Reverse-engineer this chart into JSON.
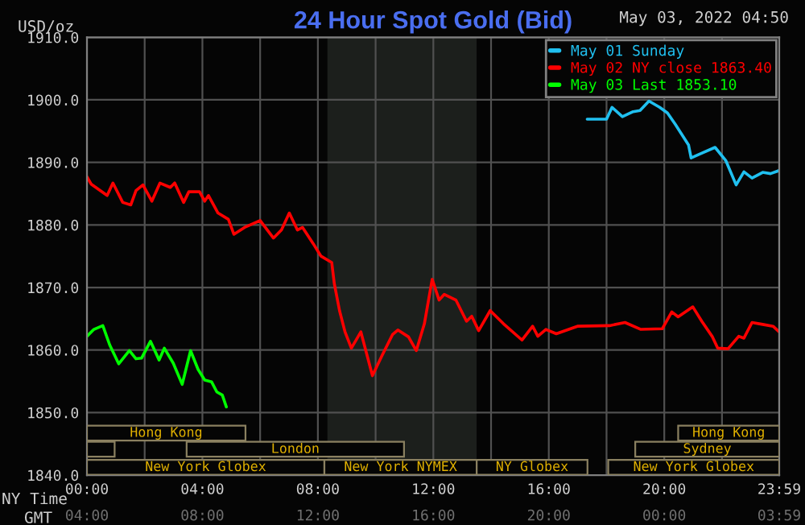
{
  "chart_data": {
    "type": "line",
    "title": "24 Hour Spot Gold (Bid)",
    "ylabel": "USD/oz",
    "series": [
      {
        "name": "May 01 Sunday",
        "color": "#20c0f0",
        "x": [
          17.33,
          18.0,
          18.19,
          18.55,
          18.92,
          19.16,
          19.47,
          19.84,
          20.11,
          20.38,
          20.84,
          20.93,
          21.21,
          21.76,
          22.13,
          22.49,
          22.76,
          23.04,
          23.41,
          23.68,
          23.98
        ],
        "values": [
          1896.9,
          1896.9,
          1898.8,
          1897.3,
          1898.1,
          1898.3,
          1899.8,
          1898.8,
          1897.9,
          1896.1,
          1892.8,
          1890.7,
          1891.3,
          1892.4,
          1890.3,
          1886.4,
          1888.5,
          1887.5,
          1888.4,
          1888.2,
          1888.7
        ]
      },
      {
        "name": "May 02 NY close 1863.40",
        "color": "#ff0000",
        "x": [
          0,
          0.15,
          0.7,
          0.9,
          1.24,
          1.52,
          1.7,
          1.94,
          2.25,
          2.53,
          2.89,
          3.04,
          3.35,
          3.53,
          3.9,
          4.08,
          4.21,
          4.54,
          4.9,
          5.09,
          5.46,
          6.0,
          6.46,
          6.74,
          7.01,
          7.29,
          7.47,
          7.84,
          8.11,
          8.48,
          8.57,
          8.75,
          8.94,
          9.16,
          9.49,
          9.89,
          10.22,
          10.59,
          10.77,
          11.14,
          11.41,
          11.69,
          11.96,
          12.2,
          12.38,
          12.78,
          13.15,
          13.33,
          13.57,
          13.97,
          14.43,
          15.07,
          15.44,
          15.62,
          15.9,
          16.26,
          16.99,
          18.1,
          18.64,
          19.19,
          19.93,
          20.26,
          20.48,
          20.99,
          21.3,
          21.67,
          21.85,
          22.21,
          22.58,
          22.76,
          23.04,
          23.41,
          23.77,
          23.98
        ],
        "values": [
          1887.7,
          1886.5,
          1884.7,
          1886.7,
          1883.6,
          1883.2,
          1885.5,
          1886.4,
          1883.8,
          1886.7,
          1886.0,
          1886.7,
          1883.6,
          1885.3,
          1885.3,
          1883.8,
          1884.7,
          1881.9,
          1880.9,
          1878.5,
          1879.6,
          1880.7,
          1877.9,
          1879.2,
          1881.9,
          1879.2,
          1879.6,
          1877.0,
          1875.0,
          1874.0,
          1870.6,
          1866.3,
          1862.9,
          1860.3,
          1862.9,
          1855.9,
          1859.1,
          1862.5,
          1863.2,
          1862.1,
          1859.9,
          1864.2,
          1871.3,
          1868.0,
          1868.9,
          1868.0,
          1864.6,
          1865.4,
          1863.1,
          1866.3,
          1864.2,
          1861.6,
          1863.8,
          1862.2,
          1863.3,
          1862.6,
          1863.8,
          1863.9,
          1864.4,
          1863.3,
          1863.4,
          1866.1,
          1865.3,
          1866.9,
          1864.6,
          1862.1,
          1860.3,
          1860.2,
          1862.2,
          1861.9,
          1864.4,
          1864.1,
          1863.8,
          1862.9
        ]
      },
      {
        "name": "May 03 Last 1853.10",
        "color": "#00ff00",
        "x": [
          0,
          0.24,
          0.55,
          0.79,
          1.1,
          1.47,
          1.7,
          1.89,
          2.2,
          2.5,
          2.68,
          2.99,
          3.3,
          3.59,
          3.85,
          4.08,
          4.32,
          4.5,
          4.69,
          4.83
        ],
        "values": [
          1862.2,
          1863.3,
          1863.9,
          1860.8,
          1857.8,
          1859.9,
          1858.6,
          1858.7,
          1861.4,
          1858.4,
          1860.3,
          1857.9,
          1854.5,
          1859.9,
          1856.9,
          1855.2,
          1854.9,
          1853.3,
          1852.8,
          1850.9
        ]
      }
    ],
    "xlim": [
      0,
      23.983
    ],
    "ylim": [
      1840,
      1910
    ],
    "xticks": [
      {
        "value": 0,
        "label": "00:00"
      },
      {
        "value": 2,
        "label": null
      },
      {
        "value": 4,
        "label": "04:00"
      },
      {
        "value": 6,
        "label": null
      },
      {
        "value": 8,
        "label": "08:00"
      },
      {
        "value": 10,
        "label": null
      },
      {
        "value": 12,
        "label": "12:00"
      },
      {
        "value": 14,
        "label": null
      },
      {
        "value": 16,
        "label": "16:00"
      },
      {
        "value": 18,
        "label": null
      },
      {
        "value": 20,
        "label": "20:00"
      },
      {
        "value": 22,
        "label": null
      },
      {
        "value": 23.983,
        "label": "23:59"
      }
    ],
    "x2lim": [
      "2022-05-02T04:00",
      "2022-05-03T03:59"
    ],
    "x2ticks": [
      {
        "value": "2022-05-02T04:00",
        "label": "04:00"
      },
      {
        "value": "2022-05-02T08:00",
        "label": "08:00"
      },
      {
        "value": "2022-05-02T12:00",
        "label": "12:00"
      },
      {
        "value": "2022-05-02T16:00",
        "label": "16:00"
      },
      {
        "value": "2022-05-02T20:00",
        "label": "20:00"
      },
      {
        "value": "2022-05-03T00:00",
        "label": "00:00"
      },
      {
        "value": "2022-05-03T03:59",
        "label": "03:59"
      }
    ],
    "yticks": [
      {
        "value": 1840,
        "label": "1840.0"
      },
      {
        "value": 1850,
        "label": "1850.0"
      },
      {
        "value": 1860,
        "label": "1860.0"
      },
      {
        "value": 1870,
        "label": "1870.0"
      },
      {
        "value": 1880,
        "label": "1880.0"
      },
      {
        "value": 1890,
        "label": "1890.0"
      },
      {
        "value": 1900,
        "label": "1900.0"
      },
      {
        "value": 1910,
        "label": "1910.0"
      }
    ],
    "bands": [
      {
        "axis": "x",
        "from": 8.33,
        "to": 13.5,
        "color": "#1c1f1c"
      }
    ],
    "annotations": [
      "May 03, 2022 04:50",
      "NY Time",
      "GMT",
      "Hong Kong",
      "London",
      "New York Globex",
      "New York NYMEX",
      "NY Globex",
      "New York Globex",
      "Sydney",
      "Hong Kong"
    ],
    "grid": true,
    "legend": "top right",
    "line_style": "solid",
    "marker": "none"
  }
}
